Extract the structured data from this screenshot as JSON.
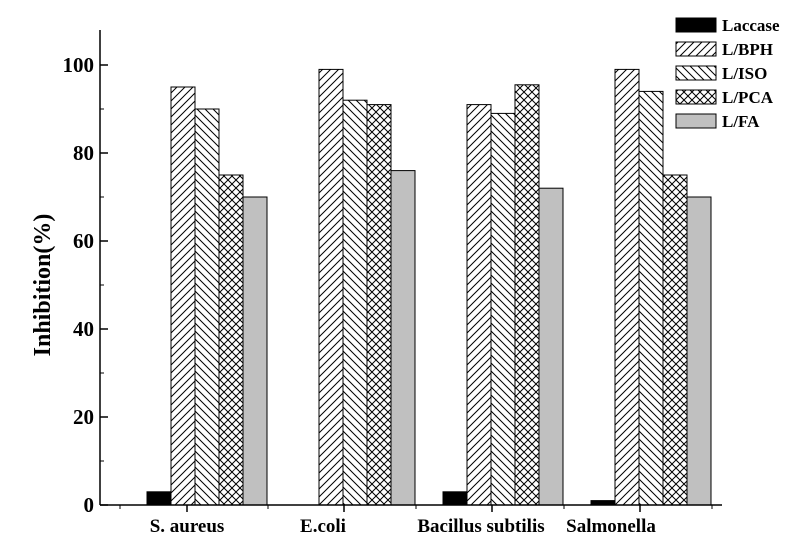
{
  "chart_data": {
    "type": "bar",
    "title": "",
    "xlabel": "",
    "ylabel": "Inhibition(%)",
    "ylim": [
      0,
      100
    ],
    "yticks": [
      0,
      20,
      40,
      60,
      80,
      100
    ],
    "categories": [
      "S. aureus",
      "E.coli",
      "Bacillus subtilis",
      "Salmonella"
    ],
    "series": [
      {
        "name": "Laccase",
        "pattern": "solid-black",
        "values": [
          3,
          0,
          3,
          1
        ]
      },
      {
        "name": "L/BPH",
        "pattern": "forward-diagonal",
        "values": [
          95,
          99,
          91,
          99
        ]
      },
      {
        "name": "L/ISO",
        "pattern": "backward-diagonal",
        "values": [
          90,
          92,
          89,
          94
        ]
      },
      {
        "name": "L/PCA",
        "pattern": "crosshatch",
        "values": [
          75,
          91,
          95.5,
          75
        ]
      },
      {
        "name": "L/FA",
        "pattern": "solid-gray",
        "values": [
          70,
          76,
          72,
          70
        ]
      }
    ],
    "grid": false,
    "legend_position": "top-right",
    "colors": {
      "gray_fill": "#c0c0c0",
      "black_fill": "#000000",
      "axis": "#000000"
    }
  }
}
